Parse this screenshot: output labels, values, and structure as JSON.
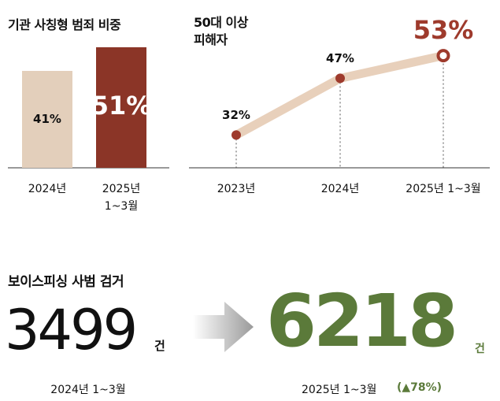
{
  "chart_data": [
    {
      "type": "bar",
      "title": "기관 사칭형 범죄 비중",
      "categories": [
        "2024년",
        "2025년 1~3월"
      ],
      "values": [
        41,
        51
      ],
      "value_labels": [
        "41%",
        "51%"
      ],
      "colors": [
        "#e3cfbb",
        "#8b3527"
      ]
    },
    {
      "type": "line",
      "title": "50대 이상 피해자",
      "categories": [
        "2023년",
        "2024년",
        "2025년 1~3월"
      ],
      "values": [
        32,
        47,
        53
      ],
      "value_labels": [
        "32%",
        "47%",
        "53%"
      ],
      "color": "#e8d0bb",
      "marker_color": "#9e3a2c"
    }
  ],
  "comparison": {
    "title": "보이스피싱 사범 검거",
    "before": {
      "number": "3499",
      "unit": "건",
      "label": "2024년 1~3월"
    },
    "after": {
      "number": "6218",
      "unit": "건",
      "label": "2025년 1~3월",
      "change": "(▲78%)"
    }
  }
}
